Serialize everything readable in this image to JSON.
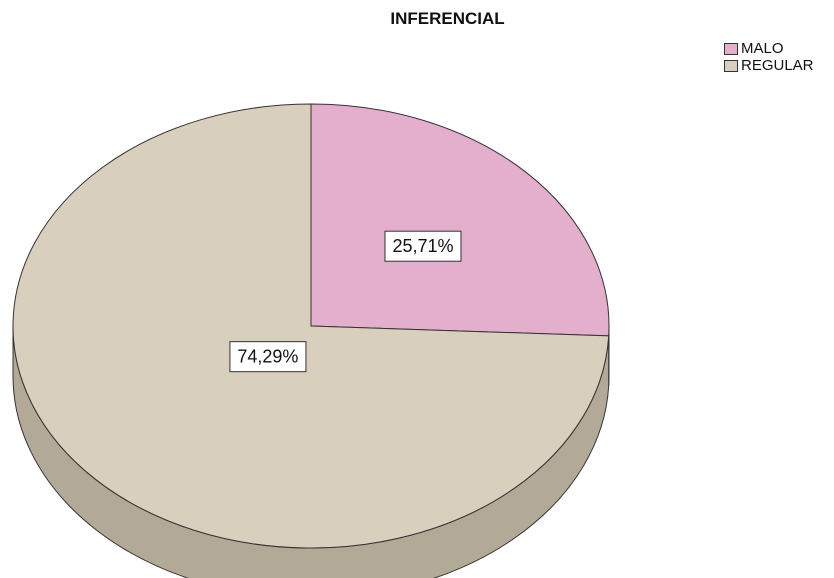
{
  "chart_data": {
    "type": "pie",
    "title": "INFERENCIAL",
    "legend_position": "top-right",
    "slices": [
      {
        "name": "MALO",
        "value": 25.71,
        "label": "25,71%",
        "color": "#e4aecd",
        "side_color": "#b98aa6"
      },
      {
        "name": "REGULAR",
        "value": 74.29,
        "label": "74,29%",
        "color": "#d8d0bd",
        "side_color": "#b2aa96"
      }
    ]
  }
}
